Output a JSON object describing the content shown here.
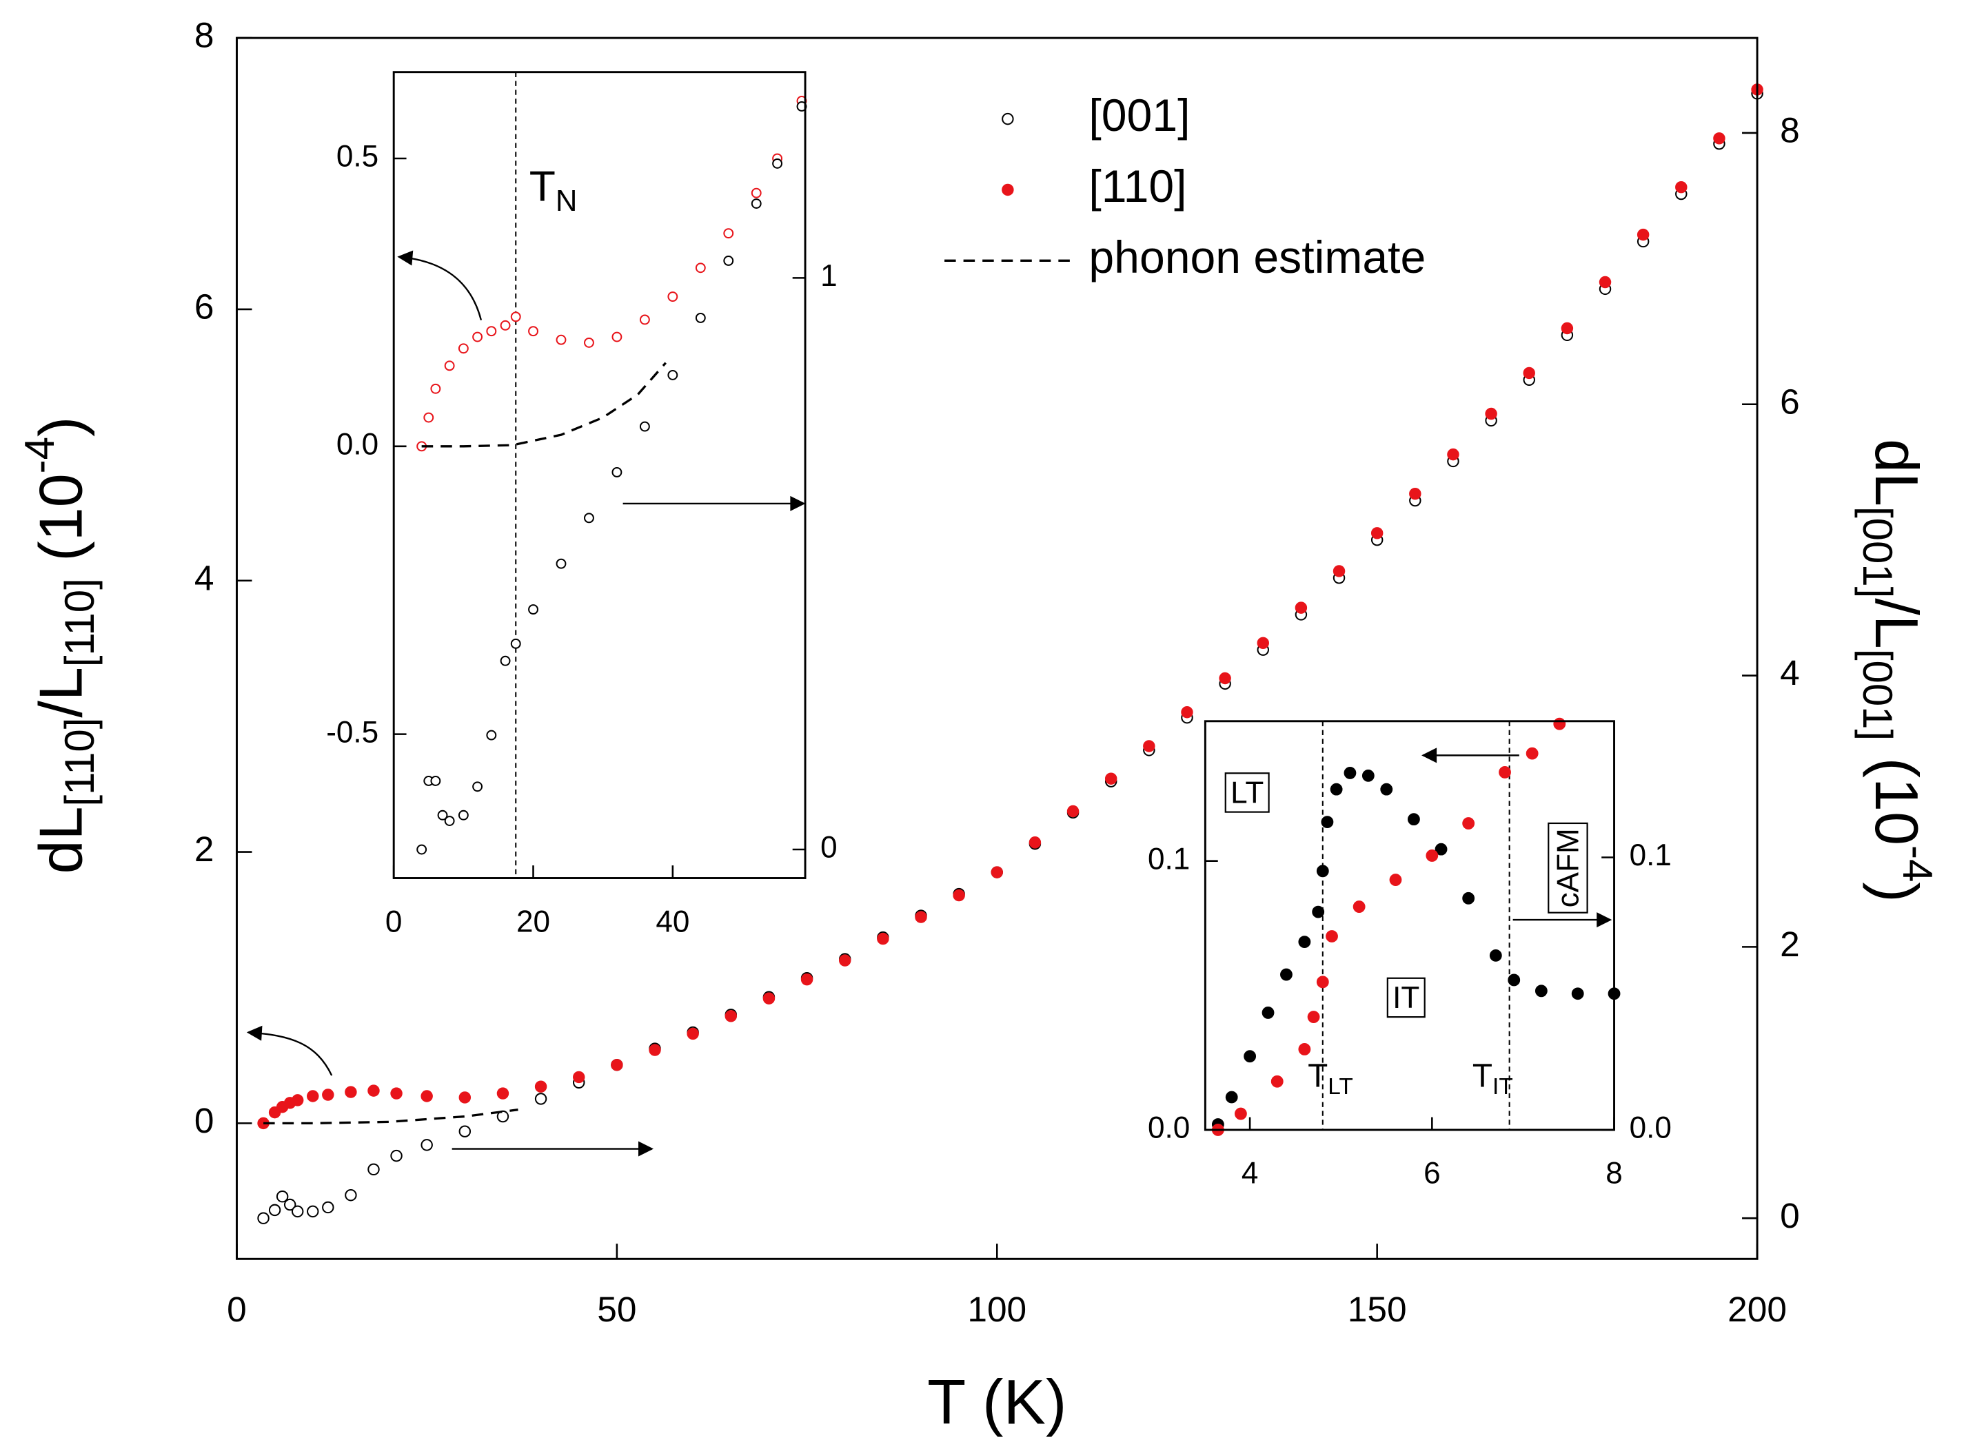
{
  "chart_data": [
    {
      "type": "scatter",
      "xlabel": "T (K)",
      "ylabel": [
        "dL",
        "[110]",
        "/L",
        "[110]",
        " (10",
        "-4",
        ")"
      ],
      "y2label": [
        "dL",
        "[001]",
        "/L",
        "[001]",
        " (10",
        "-4",
        ")"
      ],
      "xlim": [
        0,
        200
      ],
      "xticks": [
        0,
        50,
        100,
        150,
        200
      ],
      "ylim": [
        -1,
        8
      ],
      "yticks": [
        0,
        2,
        4,
        6,
        8
      ],
      "y2lim": [
        -0.3,
        8.7
      ],
      "y2ticks": [
        0,
        2,
        4,
        6,
        8
      ],
      "series": [
        {
          "name": "[001]",
          "color": "#000000",
          "marker": "open",
          "axis": "y2",
          "x": [
            3.5,
            5,
            6,
            7,
            8,
            10,
            12,
            15,
            18,
            21,
            25,
            30,
            35,
            40,
            45,
            50,
            55,
            60,
            65,
            70,
            75,
            80,
            85,
            90,
            95,
            100,
            105,
            110,
            115,
            120,
            125,
            130,
            135,
            140,
            145,
            150,
            155,
            160,
            165,
            170,
            175,
            180,
            185,
            190,
            195,
            200
          ],
          "values": [
            0.0,
            0.06,
            0.16,
            0.1,
            0.05,
            0.05,
            0.08,
            0.17,
            0.36,
            0.46,
            0.54,
            0.64,
            0.75,
            0.88,
            1.0,
            1.13,
            1.25,
            1.37,
            1.5,
            1.63,
            1.77,
            1.91,
            2.07,
            2.23,
            2.39,
            2.55,
            2.76,
            2.99,
            3.22,
            3.45,
            3.69,
            3.94,
            4.19,
            4.45,
            4.72,
            5.0,
            5.29,
            5.58,
            5.88,
            6.18,
            6.51,
            6.85,
            7.2,
            7.55,
            7.92,
            8.29
          ]
        },
        {
          "name": "[110]",
          "color": "#e8141a",
          "marker": "filled",
          "axis": "y",
          "x": [
            3.5,
            5,
            6,
            7,
            8,
            10,
            12,
            15,
            18,
            21,
            25,
            30,
            35,
            40,
            45,
            50,
            55,
            60,
            65,
            70,
            75,
            80,
            85,
            90,
            95,
            100,
            105,
            110,
            115,
            120,
            125,
            130,
            135,
            140,
            145,
            150,
            155,
            160,
            165,
            170,
            175,
            180,
            185,
            190,
            195,
            200
          ],
          "values": [
            0.0,
            0.08,
            0.12,
            0.15,
            0.17,
            0.2,
            0.21,
            0.23,
            0.24,
            0.22,
            0.2,
            0.19,
            0.22,
            0.27,
            0.34,
            0.43,
            0.54,
            0.66,
            0.79,
            0.92,
            1.06,
            1.2,
            1.36,
            1.52,
            1.68,
            1.85,
            2.07,
            2.3,
            2.54,
            2.78,
            3.03,
            3.28,
            3.54,
            3.8,
            4.07,
            4.35,
            4.64,
            4.93,
            5.23,
            5.53,
            5.86,
            6.2,
            6.55,
            6.9,
            7.26,
            7.62
          ]
        },
        {
          "name": "phonon estimate",
          "color": "#000000",
          "marker": "dashed",
          "axis": "y",
          "x": [
            3.5,
            10,
            20,
            30,
            37
          ],
          "values": [
            0,
            0,
            0.01,
            0.05,
            0.1
          ]
        }
      ]
    },
    {
      "type": "scatter",
      "xlim": [
        0,
        59
      ],
      "xticks": [
        0,
        20,
        40
      ],
      "ylim": [
        -0.75,
        0.65
      ],
      "yticks": [
        -0.5,
        {
          "value": 0,
          "label": "0.0"
        },
        0.5
      ],
      "y2lim": [
        -0.05,
        1.36
      ],
      "y2ticks": [
        0,
        1
      ],
      "vlines": [
        17.5
      ],
      "annotations": [
        {
          "text": "T",
          "sub": "N"
        }
      ],
      "series": [
        {
          "color": "#e8141a",
          "marker": "open",
          "axis": "y",
          "x": [
            4,
            5,
            6,
            8,
            10,
            12,
            14,
            16,
            17.5,
            20,
            24,
            28,
            32,
            36,
            40,
            44,
            48,
            52,
            55,
            58.5
          ],
          "values": [
            0,
            0.05,
            0.1,
            0.14,
            0.17,
            0.19,
            0.2,
            0.21,
            0.225,
            0.2,
            0.185,
            0.18,
            0.19,
            0.22,
            0.26,
            0.31,
            0.37,
            0.44,
            0.5,
            0.6
          ]
        },
        {
          "color": "#000000",
          "marker": "open",
          "axis": "y2",
          "x": [
            4,
            5,
            6,
            7,
            8,
            10,
            12,
            14,
            16,
            17.5,
            20,
            24,
            28,
            32,
            36,
            40,
            44,
            48,
            52,
            55,
            58.5
          ],
          "values": [
            0.0,
            0.12,
            0.12,
            0.06,
            0.05,
            0.06,
            0.11,
            0.2,
            0.33,
            0.36,
            0.42,
            0.5,
            0.58,
            0.66,
            0.74,
            0.83,
            0.93,
            1.03,
            1.13,
            1.2,
            1.3
          ]
        },
        {
          "color": "#000000",
          "marker": "dashed",
          "axis": "y",
          "x": [
            4,
            10,
            17,
            24,
            30,
            35,
            39
          ],
          "values": [
            0,
            0,
            0.002,
            0.02,
            0.05,
            0.09,
            0.145
          ]
        }
      ]
    },
    {
      "type": "scatter",
      "xlim": [
        3.51,
        8
      ],
      "xticks": [
        4,
        6,
        8
      ],
      "ylim": [
        0,
        0.152
      ],
      "yticks": [
        {
          "value": 0,
          "label": "0.0"
        },
        0.1
      ],
      "y2lim": [
        0,
        0.15
      ],
      "y2ticks": [
        {
          "value": 0,
          "label": "0.0"
        },
        0.1
      ],
      "vlines": [
        4.8,
        6.85
      ],
      "annotations": [
        {
          "text": "LT"
        },
        {
          "text": "IT"
        },
        {
          "text": "cAFM"
        },
        {
          "text": "T",
          "sub": "LT"
        },
        {
          "text": "T",
          "sub": "IT"
        }
      ],
      "series": [
        {
          "color": "#000000",
          "marker": "filled",
          "axis": "y2",
          "x": [
            3.65,
            3.8,
            4.0,
            4.2,
            4.4,
            4.6,
            4.75,
            4.8,
            4.85,
            4.95,
            5.1,
            5.3,
            5.5,
            5.8,
            6.1,
            6.4,
            6.7,
            6.9,
            7.2,
            7.6,
            8.0
          ],
          "values": [
            0.002,
            0.012,
            0.027,
            0.043,
            0.057,
            0.069,
            0.08,
            0.095,
            0.113,
            0.125,
            0.131,
            0.13,
            0.125,
            0.114,
            0.103,
            0.085,
            0.064,
            0.055,
            0.051,
            0.05,
            0.05
          ]
        },
        {
          "color": "#e8141a",
          "marker": "filled",
          "axis": "y",
          "x": [
            3.65,
            3.9,
            4.3,
            4.6,
            4.7,
            4.8,
            4.9,
            5.2,
            5.6,
            6.0,
            6.4,
            6.8,
            7.1,
            7.4
          ],
          "values": [
            0,
            0.006,
            0.018,
            0.03,
            0.042,
            0.055,
            0.072,
            0.083,
            0.093,
            0.102,
            0.114,
            0.133,
            0.14,
            0.151
          ]
        }
      ]
    }
  ]
}
